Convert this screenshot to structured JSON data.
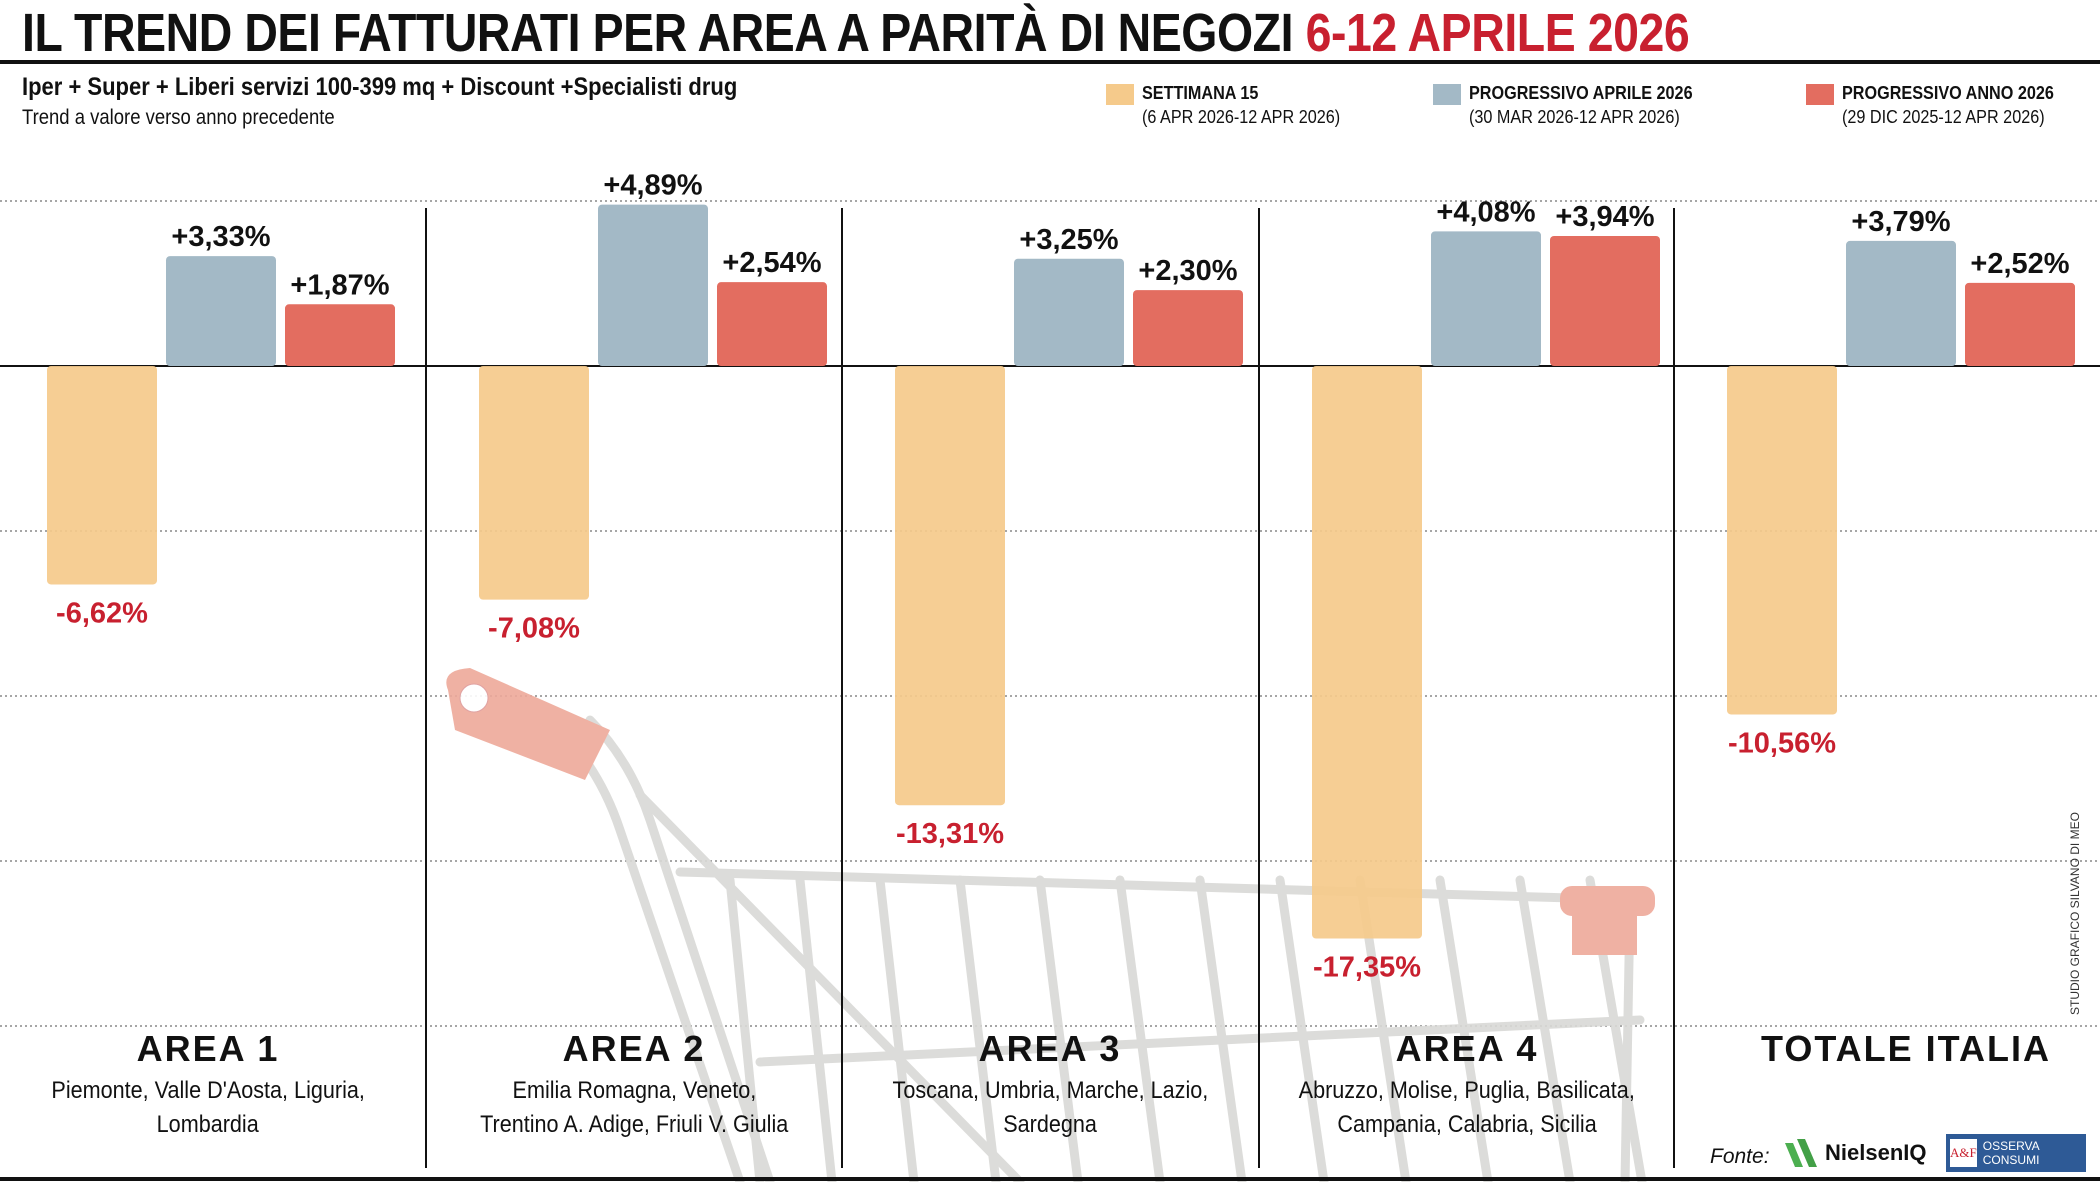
{
  "header": {
    "title_black": "IL TREND DEI FATTURATI PER AREA A PARITÀ DI NEGOZI",
    "title_red": "6-12 APRILE 2026",
    "subtitle": "Iper + Super + Liberi servizi 100-399 mq + Discount +Specialisti drug",
    "subtitle2": "Trend a valore verso anno precedente"
  },
  "legend": [
    {
      "label": "SETTIMANA 15",
      "period": "(6 APR 2026-12 APR 2026)",
      "color": "#f5ca8b"
    },
    {
      "label": "PROGRESSIVO APRILE 2026",
      "period": "(30 MAR 2026-12 APR 2026)",
      "color": "#a3b9c6"
    },
    {
      "label": "PROGRESSIVO ANNO 2026",
      "period": "(29 DIC 2025-12 APR 2026)",
      "color": "#e36d60"
    }
  ],
  "chart_data": {
    "type": "bar",
    "unit": "%",
    "ylim": [
      -20,
      5
    ],
    "grid": true,
    "gridlines": [
      5,
      0,
      -5,
      -10,
      -15,
      -20
    ],
    "legend_placement": "top-right",
    "categories": [
      "AREA 1",
      "AREA 2",
      "AREA 3",
      "AREA 4",
      "TOTALE ITALIA"
    ],
    "category_regions": [
      [
        "Piemonte, Valle D'Aosta, Liguria,",
        "Lombardia"
      ],
      [
        "Emilia Romagna, Veneto,",
        "Trentino A. Adige, Friuli V. Giulia"
      ],
      [
        "Toscana, Umbria, Marche, Lazio,",
        "Sardegna"
      ],
      [
        "Abruzzo, Molise, Puglia, Basilicata,",
        "Campania, Calabria, Sicilia"
      ],
      []
    ],
    "series": [
      {
        "name": "SETTIMANA 15",
        "values": [
          -6.62,
          -7.08,
          -13.31,
          -17.35,
          -10.56
        ],
        "labels": [
          "-6,62%",
          "-7,08%",
          "-13,31%",
          "-17,35%",
          "-10,56%"
        ]
      },
      {
        "name": "PROGRESSIVO APRILE 2026",
        "values": [
          3.33,
          4.89,
          3.25,
          4.08,
          3.79
        ],
        "labels": [
          "+3,33%",
          "+4,89%",
          "+3,25%",
          "+4,08%",
          "+3,79%"
        ]
      },
      {
        "name": "PROGRESSIVO ANNO 2026",
        "values": [
          1.87,
          2.54,
          2.3,
          3.94,
          2.52
        ],
        "labels": [
          "+1,87%",
          "+2,54%",
          "+2,30%",
          "+3,94%",
          "+2,52%"
        ]
      }
    ],
    "colors": {
      "negative_label": "#c8202f",
      "positive_label": "#111111"
    }
  },
  "footer": {
    "credit": "STUDIO GRAFICO SILVANO DI MEO",
    "source_label": "Fonte:",
    "source1": "NielsenIQ",
    "source2": "OSSERVA CONSUMI",
    "source2_logo": "A&F"
  }
}
